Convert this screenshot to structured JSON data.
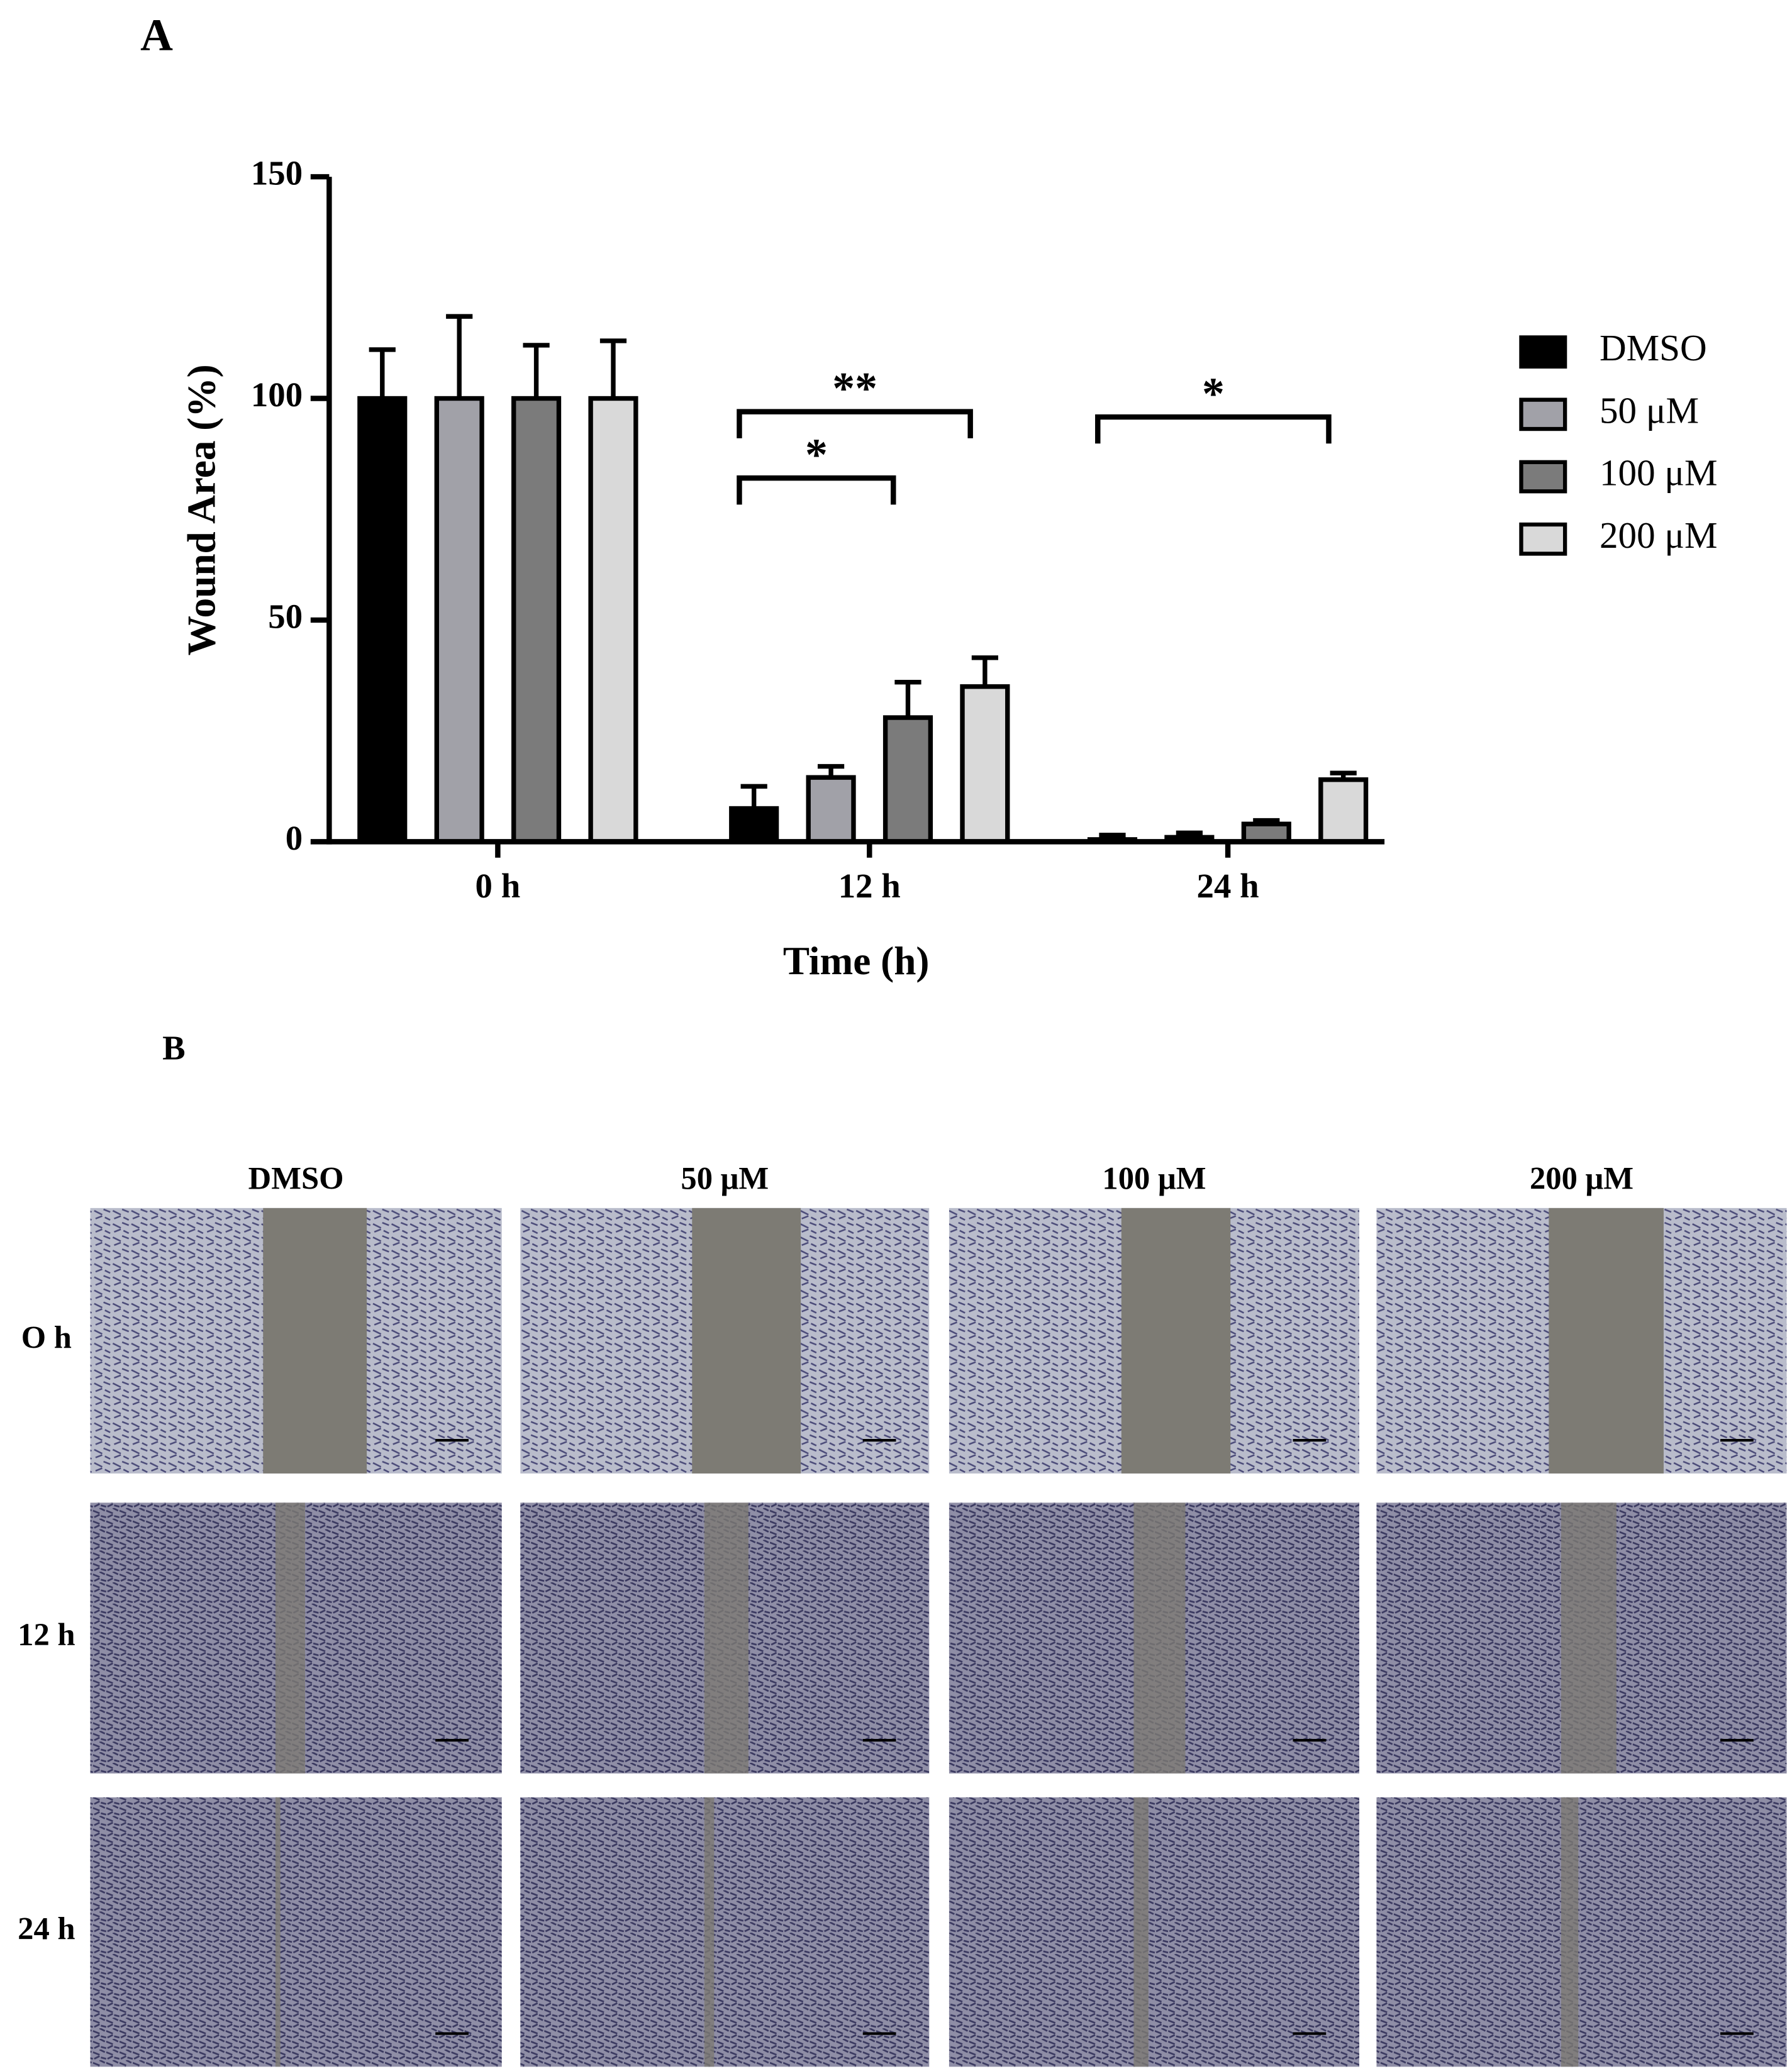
{
  "panel_labels": [
    "A",
    "B"
  ],
  "chart_data": {
    "type": "bar",
    "y_label": "Wound Area (%)",
    "x_label": "Time (h)",
    "categories": [
      "0 h",
      "12 h",
      "24 h"
    ],
    "series": [
      {
        "name": "DMSO",
        "color": "#000000",
        "values": [
          100,
          7.5,
          0.5
        ],
        "errors": [
          11,
          5,
          1
        ]
      },
      {
        "name": "50 μM",
        "color": "#a1a1a8",
        "values": [
          100,
          14.5,
          1
        ],
        "errors": [
          18.5,
          2.5,
          1
        ]
      },
      {
        "name": "100 μM",
        "color": "#7b7b7b",
        "values": [
          100,
          28,
          4
        ],
        "errors": [
          12,
          8,
          0.8
        ]
      },
      {
        "name": "200 μM",
        "color": "#d9d9d9",
        "values": [
          100,
          35,
          14
        ],
        "errors": [
          13,
          6.5,
          1.5
        ]
      }
    ],
    "ylim": [
      0,
      150
    ],
    "yticks": [
      0,
      50,
      100,
      150
    ],
    "grid": false,
    "legend": "right",
    "significance": [
      "**",
      "*",
      "*"
    ]
  },
  "panel_b": {
    "columns": [
      "DMSO",
      "50 μM",
      "100 μM",
      "200 μM"
    ],
    "rows": [
      "O h",
      "12 h",
      "24 h"
    ]
  }
}
